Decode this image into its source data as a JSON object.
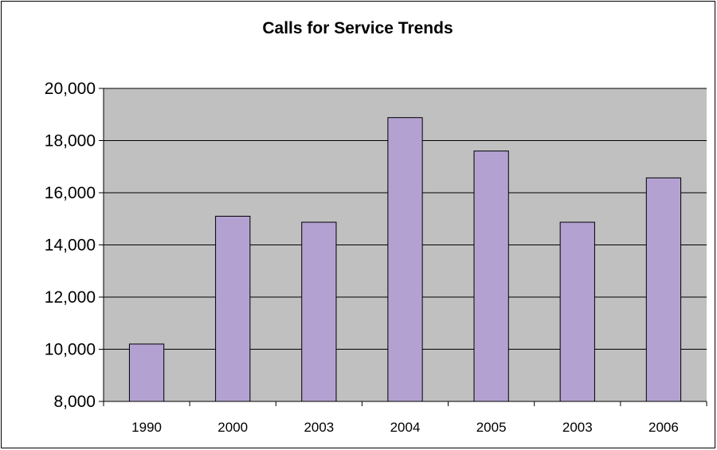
{
  "chart_data": {
    "type": "bar",
    "title": "Calls for Service Trends",
    "categories": [
      "1990",
      "2000",
      "2003",
      "2004",
      "2005",
      "2003",
      "2006"
    ],
    "values": [
      10200,
      15100,
      14870,
      18880,
      17600,
      14870,
      16570
    ],
    "ylim": [
      8000,
      20000
    ],
    "yticks": [
      8000,
      10000,
      12000,
      14000,
      16000,
      18000,
      20000
    ],
    "ytick_labels": [
      "8,000",
      "10,000",
      "12,000",
      "14,000",
      "16,000",
      "18,000",
      "20,000"
    ],
    "xlabel": "",
    "ylabel": "",
    "grid": true,
    "legend": "none",
    "colors": {
      "bar_fill": "#b3a2d1",
      "bar_stroke": "#000000",
      "plot_background": "#c0c0c0",
      "grid": "#000000"
    }
  }
}
